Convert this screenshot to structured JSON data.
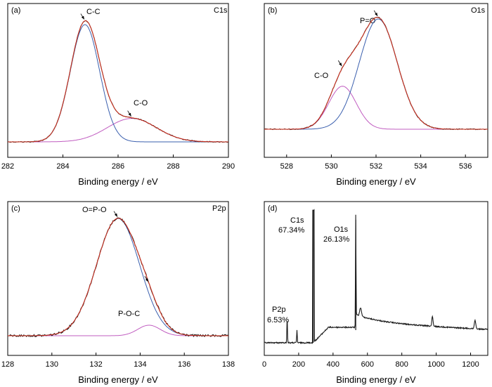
{
  "colors": {
    "experimental": "#1a1a1a",
    "fit_envelope": "#d8321e",
    "main_component": "#3a5fae",
    "second_component": "#c05cc0"
  },
  "chart_data": [
    {
      "type": "line",
      "panel_label": "(a)",
      "title": "C1s",
      "xlabel": "Binding energy / eV",
      "xlim": [
        282,
        290
      ],
      "xticks": [
        282,
        284,
        286,
        288,
        290
      ],
      "series": [
        {
          "name": "C-C",
          "peak_center": 284.8,
          "fwhm": 1.25,
          "relative_height": 1.0
        },
        {
          "name": "C-O",
          "peak_center": 286.5,
          "fwhm": 2.1,
          "relative_height": 0.2
        }
      ],
      "annotations": [
        {
          "text": "C-C",
          "x": 284.8
        },
        {
          "text": "C-O",
          "x": 286.5
        }
      ]
    },
    {
      "type": "line",
      "panel_label": "(b)",
      "title": "O1s",
      "xlabel": "Binding energy / eV",
      "xlim": [
        527,
        537
      ],
      "xticks": [
        528,
        530,
        532,
        534,
        536
      ],
      "series": [
        {
          "name": "P=O",
          "peak_center": 532.1,
          "fwhm": 2.0,
          "relative_height": 1.0
        },
        {
          "name": "C-O",
          "peak_center": 530.5,
          "fwhm": 1.45,
          "relative_height": 0.39
        }
      ],
      "annotations": [
        {
          "text": "P=O",
          "x": 532.1
        },
        {
          "text": "C-O",
          "x": 530.5
        }
      ]
    },
    {
      "type": "line",
      "panel_label": "(c)",
      "title": "P2p",
      "xlabel": "Binding energy / eV",
      "xlim": [
        128,
        138
      ],
      "xticks": [
        128,
        130,
        132,
        134,
        136,
        138
      ],
      "series": [
        {
          "name": "O=P-O",
          "peak_center": 133.0,
          "fwhm": 2.3,
          "relative_height": 1.0
        },
        {
          "name": "P-O-C",
          "peak_center": 134.4,
          "fwhm": 1.2,
          "relative_height": 0.09
        }
      ],
      "annotations": [
        {
          "text": "O=P-O",
          "x": 133.0
        },
        {
          "text": "P-O-C",
          "x": 134.4
        }
      ]
    },
    {
      "type": "line",
      "panel_label": "(d)",
      "xlabel": "Binding energy / eV",
      "xlim": [
        0,
        1300
      ],
      "xticks": [
        0,
        200,
        400,
        600,
        800,
        1000,
        1200
      ],
      "peaks": [
        {
          "label": "P2p",
          "percent": "6.53%",
          "x": 133
        },
        {
          "label": "C1s",
          "percent": "67.34%",
          "x": 285
        },
        {
          "label": "O1s",
          "percent": "26.13%",
          "x": 532
        }
      ]
    }
  ]
}
